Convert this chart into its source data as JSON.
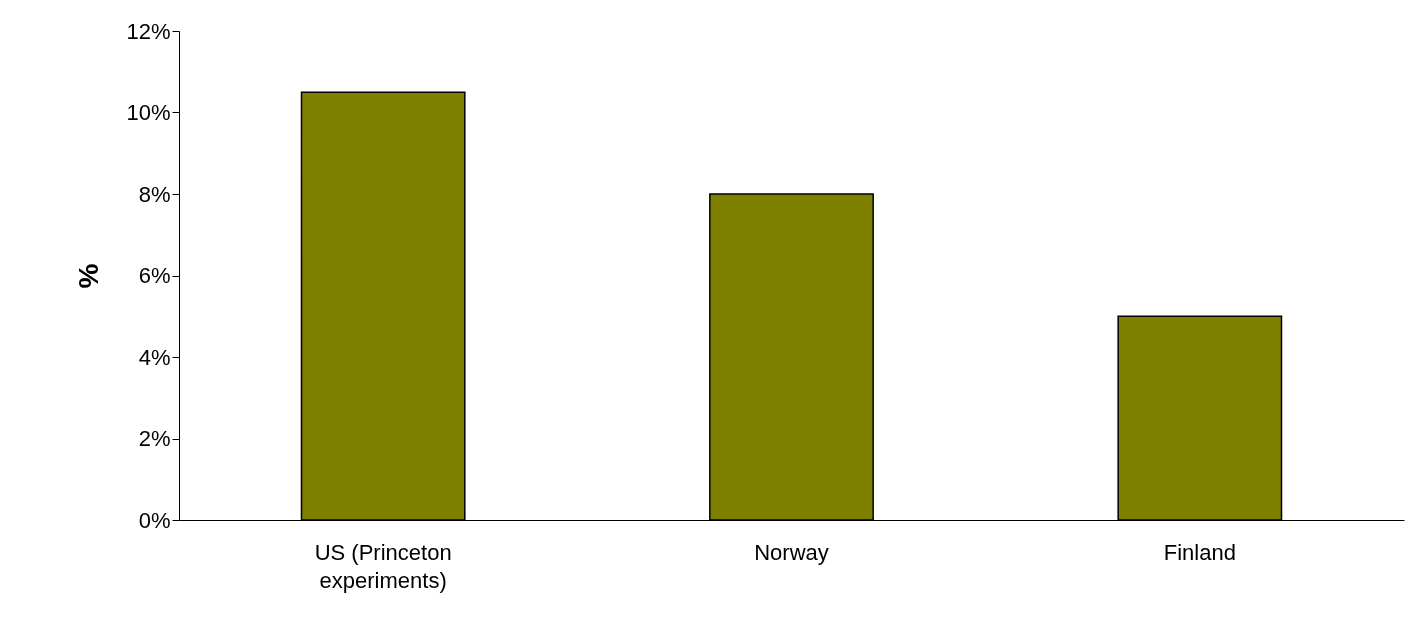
{
  "chart_data": {
    "type": "bar",
    "ylabel": "%",
    "categories": [
      "US (Princeton experiments)",
      "Norway",
      "Finland"
    ],
    "values": [
      10.5,
      8,
      5
    ],
    "color": "#808000",
    "ylim": [
      0,
      12
    ],
    "yticks": [
      {
        "value": 0,
        "label": "0%"
      },
      {
        "value": 2,
        "label": "2%"
      },
      {
        "value": 4,
        "label": "4%"
      },
      {
        "value": 6,
        "label": "6%"
      },
      {
        "value": 8,
        "label": "8%"
      },
      {
        "value": 10,
        "label": "10%"
      },
      {
        "value": 12,
        "label": "12%"
      }
    ],
    "grid": false
  }
}
